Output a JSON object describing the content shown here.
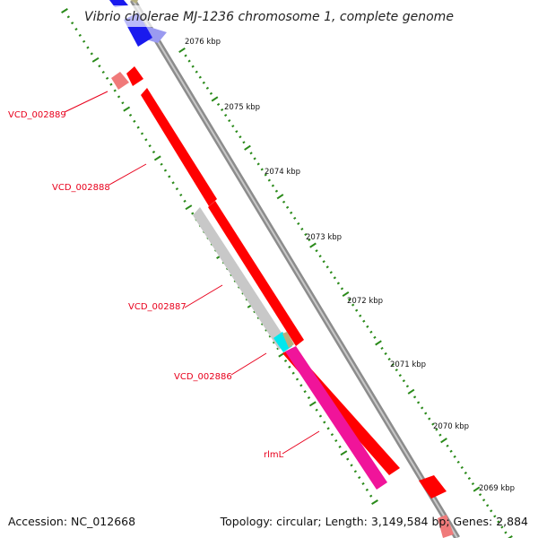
{
  "title": "Vibrio cholerae MJ-1236 chromosome 1, complete genome",
  "footer": {
    "accession": "Accession: NC_012668",
    "summary": "Topology: circular; Length: 3,149,584 bp; Genes: 2,884"
  },
  "scale_labels": [
    "2076 kbp",
    "2075 kbp",
    "2074 kbp",
    "2073 kbp",
    "2072 kbp",
    "2071 kbp",
    "2070 kbp",
    "2069 kbp"
  ],
  "gene_labels": [
    "VCD_002889",
    "VCD_002888",
    "VCD_002887",
    "VCD_002886",
    "rlmL"
  ],
  "colors": {
    "backbone": "#8c8c8c",
    "gene_red": "#ff0000",
    "gene_red_dark": "#c40000",
    "gene_gray": "#c8c8c8",
    "gene_magenta": "#f0149a",
    "gene_cyan": "#00e8ee",
    "gene_blue": "#1a1aee",
    "gene_lightblue": "#9a9af0",
    "gene_pink": "#f07a7a",
    "gene_olive": "#b6b080",
    "ticks": "#2a8a1a",
    "label_red": "#e8001c"
  }
}
